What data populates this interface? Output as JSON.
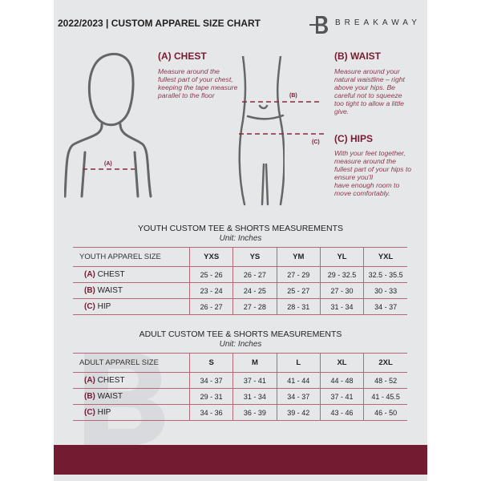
{
  "header": {
    "title": "2022/2023 | CUSTOM APPAREL SIZE CHART",
    "brand": "BREAKAWAY",
    "logo_letter": "B"
  },
  "colors": {
    "accent": "#721b31",
    "panel": "#e6e7e9",
    "table_line": "#b26a78"
  },
  "measurements": {
    "chest": {
      "heading": "(A) CHEST",
      "label": "(A)",
      "description": "Measure around the fullest part of your chest, keeping the tape measure parallel to the floor"
    },
    "waist": {
      "heading": "(B) WAIST",
      "label": "(B)",
      "description": "Measure around your natural waistline – right above your hips. Be careful not to squeeze too tight to allow a little give."
    },
    "hips": {
      "heading": "(C) HIPS",
      "label": "(C)",
      "description_lines": [
        "With your feet together, measure around the fullest part of your hips to ensure you'll",
        "have enough room to move comfortably."
      ]
    }
  },
  "youth": {
    "title": "YOUTH CUSTOM TEE & SHORTS MEASUREMENTS",
    "unit": "Unit: Inches",
    "header": [
      "YOUTH APPAREL SIZE",
      "YXS",
      "YS",
      "YM",
      "YL",
      "YXL"
    ],
    "rows": [
      {
        "code": "(A)",
        "name": "CHEST",
        "values": [
          "25 - 26",
          "26 - 27",
          "27 - 29",
          "29 - 32.5",
          "32.5 - 35.5"
        ]
      },
      {
        "code": "(B)",
        "name": "WAIST",
        "values": [
          "23 - 24",
          "24 - 25",
          "25 - 27",
          "27 - 30",
          "30 - 33"
        ]
      },
      {
        "code": "(C)",
        "name": "HIP",
        "values": [
          "26 - 27",
          "27 - 28",
          "28 - 31",
          "31 - 34",
          "34 - 37"
        ]
      }
    ]
  },
  "adult": {
    "title": "ADULT CUSTOM TEE & SHORTS MEASUREMENTS",
    "unit": "Unit: Inches",
    "header": [
      "ADULT APPAREL SIZE",
      "S",
      "M",
      "L",
      "XL",
      "2XL"
    ],
    "rows": [
      {
        "code": "(A)",
        "name": "CHEST",
        "values": [
          "34 - 37",
          "37 - 41",
          "41 - 44",
          "44 - 48",
          "48 - 52"
        ]
      },
      {
        "code": "(B)",
        "name": "WAIST",
        "values": [
          "29 - 31",
          "31 - 34",
          "34 - 37",
          "37 - 41",
          "41 - 45.5"
        ]
      },
      {
        "code": "(C)",
        "name": "HIP",
        "values": [
          "34 - 36",
          "36 - 39",
          "39 - 42",
          "43 - 46",
          "46 - 50"
        ]
      }
    ]
  }
}
